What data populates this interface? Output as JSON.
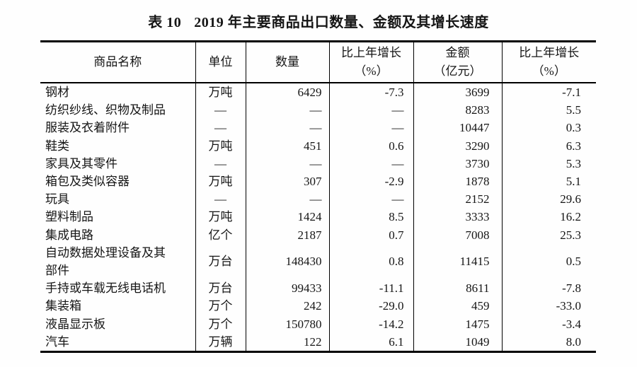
{
  "colors": {
    "background": "#fefefe",
    "text": "#151515",
    "table_border": "#000000"
  },
  "title": {
    "prefix": "表 10",
    "text": "2019 年主要商品出口数量、金额及其增长速度"
  },
  "table": {
    "headers": [
      {
        "line1": "商品名称",
        "line2": ""
      },
      {
        "line1": "单位",
        "line2": ""
      },
      {
        "line1": "数量",
        "line2": ""
      },
      {
        "line1": "比上年增长",
        "line2": "（%）"
      },
      {
        "line1": "金额",
        "line2": "（亿元）"
      },
      {
        "line1": "比上年增长",
        "line2": "（%）"
      }
    ],
    "rows": [
      [
        "钢材",
        "万吨",
        "6429",
        "-7.3",
        "3699",
        "-7.1"
      ],
      [
        "纺织纱线、织物及制品",
        "—",
        "—",
        "—",
        "8283",
        "5.5"
      ],
      [
        "服装及衣着附件",
        "—",
        "—",
        "—",
        "10447",
        "0.3"
      ],
      [
        "鞋类",
        "万吨",
        "451",
        "0.6",
        "3290",
        "6.3"
      ],
      [
        "家具及其零件",
        "—",
        "—",
        "—",
        "3730",
        "5.3"
      ],
      [
        "箱包及类似容器",
        "万吨",
        "307",
        "-2.9",
        "1878",
        "5.1"
      ],
      [
        "玩具",
        "—",
        "—",
        "—",
        "2152",
        "29.6"
      ],
      [
        "塑料制品",
        "万吨",
        "1424",
        "8.5",
        "3333",
        "16.2"
      ],
      [
        "集成电路",
        "亿个",
        "2187",
        "0.7",
        "7008",
        "25.3"
      ],
      [
        "自动数据处理设备及其\n部件",
        "万台",
        "148430",
        "0.8",
        "11415",
        "0.5"
      ],
      [
        "手持或车载无线电话机",
        "万台",
        "99433",
        "-11.1",
        "8611",
        "-7.8"
      ],
      [
        "集装箱",
        "万个",
        "242",
        "-29.0",
        "459",
        "-33.0"
      ],
      [
        "液晶显示板",
        "万个",
        "150780",
        "-14.2",
        "1475",
        "-3.4"
      ],
      [
        "汽车",
        "万辆",
        "122",
        "6.1",
        "1049",
        "8.0"
      ]
    ]
  }
}
